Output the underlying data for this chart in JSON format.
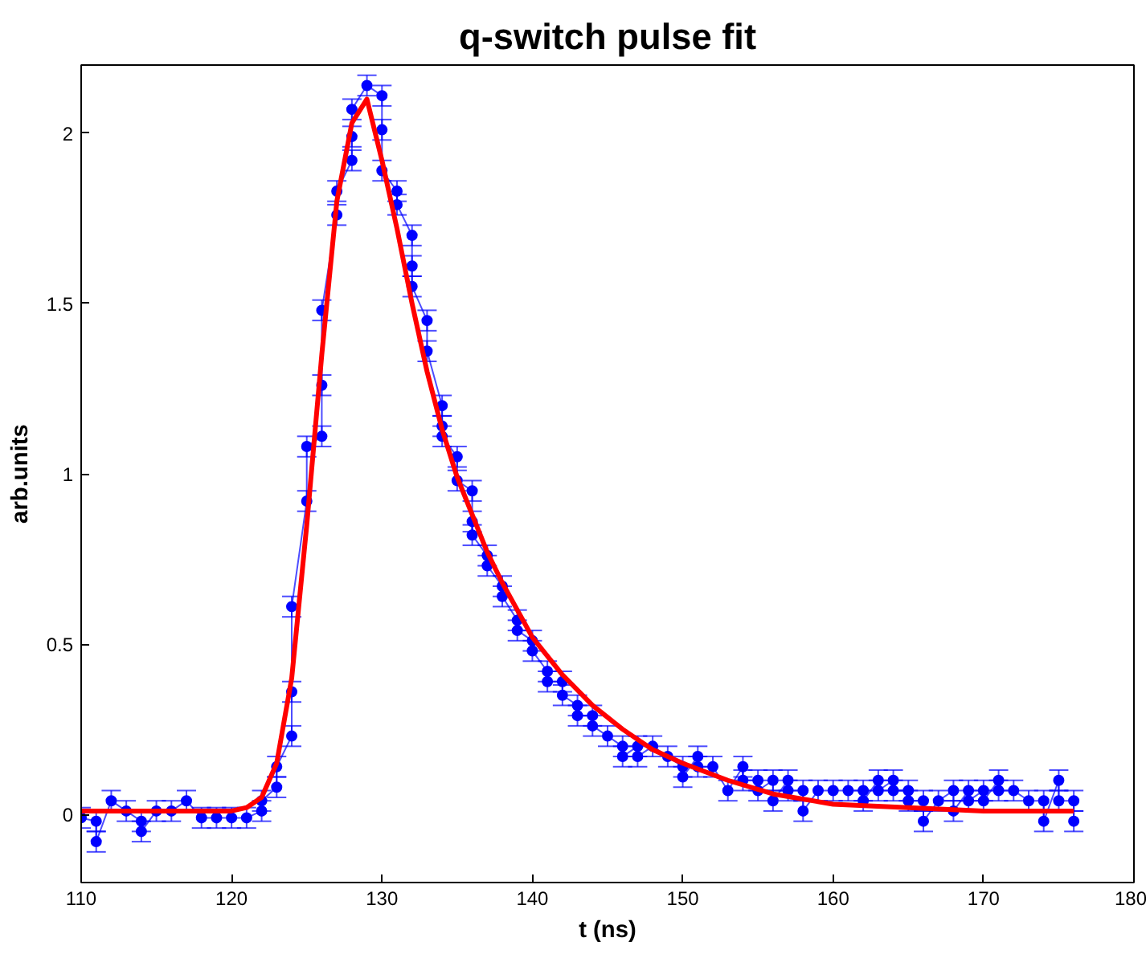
{
  "chart_data": {
    "type": "line",
    "title": "q-switch pulse fit",
    "xlabel": "t (ns)",
    "ylabel": "arb.units",
    "xlim": [
      110,
      180
    ],
    "xticks": [
      110,
      120,
      130,
      140,
      150,
      160,
      170,
      180
    ],
    "ylim": [
      -0.2,
      2.2
    ],
    "yticks": [
      0,
      0.5,
      1,
      1.5,
      2
    ],
    "grid": false,
    "series": [
      {
        "marker": "circle",
        "line_style": "solid",
        "color": "#0000ff",
        "x": [
          110,
          111,
          111,
          112,
          113,
          114,
          114,
          115,
          116,
          117,
          118,
          119,
          120,
          121,
          122,
          122,
          123,
          123,
          124,
          124,
          124,
          125,
          125,
          126,
          126,
          126,
          127,
          127,
          128,
          128,
          128,
          129,
          130,
          130,
          130,
          131,
          131,
          132,
          132,
          132,
          133,
          133,
          134,
          134,
          134,
          135,
          135,
          136,
          136,
          136,
          137,
          137,
          138,
          138,
          139,
          139,
          140,
          140,
          141,
          141,
          142,
          142,
          143,
          143,
          144,
          144,
          145,
          146,
          146,
          147,
          147,
          148,
          149,
          150,
          150,
          151,
          151,
          152,
          153,
          154,
          154,
          155,
          155,
          156,
          156,
          157,
          157,
          158,
          158,
          159,
          160,
          161,
          162,
          162,
          163,
          163,
          164,
          164,
          165,
          165,
          166,
          166,
          167,
          168,
          168,
          169,
          169,
          170,
          170,
          171,
          171,
          172,
          173,
          174,
          174,
          175,
          175,
          176,
          176
        ],
        "values": [
          -0.01,
          -0.02,
          -0.08,
          0.04,
          0.01,
          -0.02,
          -0.05,
          0.01,
          0.01,
          0.04,
          -0.01,
          -0.01,
          -0.01,
          -0.01,
          0.01,
          0.04,
          0.08,
          0.14,
          0.23,
          0.36,
          0.61,
          0.92,
          1.08,
          1.11,
          1.26,
          1.48,
          1.76,
          1.83,
          1.92,
          1.99,
          2.07,
          2.14,
          2.11,
          2.01,
          1.89,
          1.83,
          1.79,
          1.7,
          1.61,
          1.55,
          1.45,
          1.36,
          1.2,
          1.14,
          1.11,
          1.05,
          0.98,
          0.95,
          0.86,
          0.82,
          0.76,
          0.73,
          0.67,
          0.64,
          0.57,
          0.54,
          0.51,
          0.48,
          0.42,
          0.39,
          0.39,
          0.35,
          0.32,
          0.29,
          0.29,
          0.26,
          0.23,
          0.2,
          0.17,
          0.2,
          0.17,
          0.2,
          0.17,
          0.14,
          0.11,
          0.17,
          0.14,
          0.14,
          0.07,
          0.14,
          0.1,
          0.1,
          0.07,
          0.1,
          0.04,
          0.1,
          0.07,
          0.07,
          0.01,
          0.07,
          0.07,
          0.07,
          0.07,
          0.04,
          0.1,
          0.07,
          0.1,
          0.07,
          0.07,
          0.04,
          0.04,
          -0.02,
          0.04,
          0.07,
          0.01,
          0.07,
          0.04,
          0.07,
          0.04,
          0.1,
          0.07,
          0.07,
          0.04,
          0.04,
          -0.02,
          0.1,
          0.04,
          0.04,
          -0.02
        ],
        "errors": [
          0.03,
          0.03,
          0.03,
          0.03,
          0.03,
          0.03,
          0.03,
          0.03,
          0.03,
          0.03,
          0.03,
          0.03,
          0.03,
          0.03,
          0.03,
          0.03,
          0.03,
          0.03,
          0.03,
          0.03,
          0.03,
          0.03,
          0.03,
          0.03,
          0.03,
          0.03,
          0.03,
          0.03,
          0.03,
          0.03,
          0.03,
          0.03,
          0.03,
          0.03,
          0.03,
          0.03,
          0.03,
          0.03,
          0.03,
          0.03,
          0.03,
          0.03,
          0.03,
          0.03,
          0.03,
          0.03,
          0.03,
          0.03,
          0.03,
          0.03,
          0.03,
          0.03,
          0.03,
          0.03,
          0.03,
          0.03,
          0.03,
          0.03,
          0.03,
          0.03,
          0.03,
          0.03,
          0.03,
          0.03,
          0.03,
          0.03,
          0.03,
          0.03,
          0.03,
          0.03,
          0.03,
          0.03,
          0.03,
          0.03,
          0.03,
          0.03,
          0.03,
          0.03,
          0.03,
          0.03,
          0.03,
          0.03,
          0.03,
          0.03,
          0.03,
          0.03,
          0.03,
          0.03,
          0.03,
          0.03,
          0.03,
          0.03,
          0.03,
          0.03,
          0.03,
          0.03,
          0.03,
          0.03,
          0.03,
          0.03,
          0.03,
          0.03,
          0.03,
          0.03,
          0.03,
          0.03,
          0.03,
          0.03,
          0.03,
          0.03,
          0.03,
          0.03,
          0.03,
          0.03,
          0.03,
          0.03,
          0.03,
          0.03,
          0.03
        ]
      },
      {
        "marker": "none",
        "line_style": "solid",
        "color": "#ff0000",
        "x": [
          110,
          115,
          120,
          121,
          122,
          123,
          124,
          125,
          126,
          127,
          128,
          129,
          130,
          131,
          132,
          133,
          134,
          135,
          136,
          137,
          138,
          139,
          140,
          142,
          144,
          146,
          148,
          150,
          153,
          156,
          160,
          165,
          170,
          176
        ],
        "values": [
          0.01,
          0.01,
          0.01,
          0.02,
          0.05,
          0.15,
          0.4,
          0.85,
          1.35,
          1.8,
          2.03,
          2.1,
          1.92,
          1.72,
          1.5,
          1.3,
          1.13,
          0.99,
          0.88,
          0.77,
          0.68,
          0.6,
          0.52,
          0.41,
          0.32,
          0.25,
          0.19,
          0.15,
          0.1,
          0.06,
          0.03,
          0.02,
          0.01,
          0.01
        ]
      }
    ]
  }
}
